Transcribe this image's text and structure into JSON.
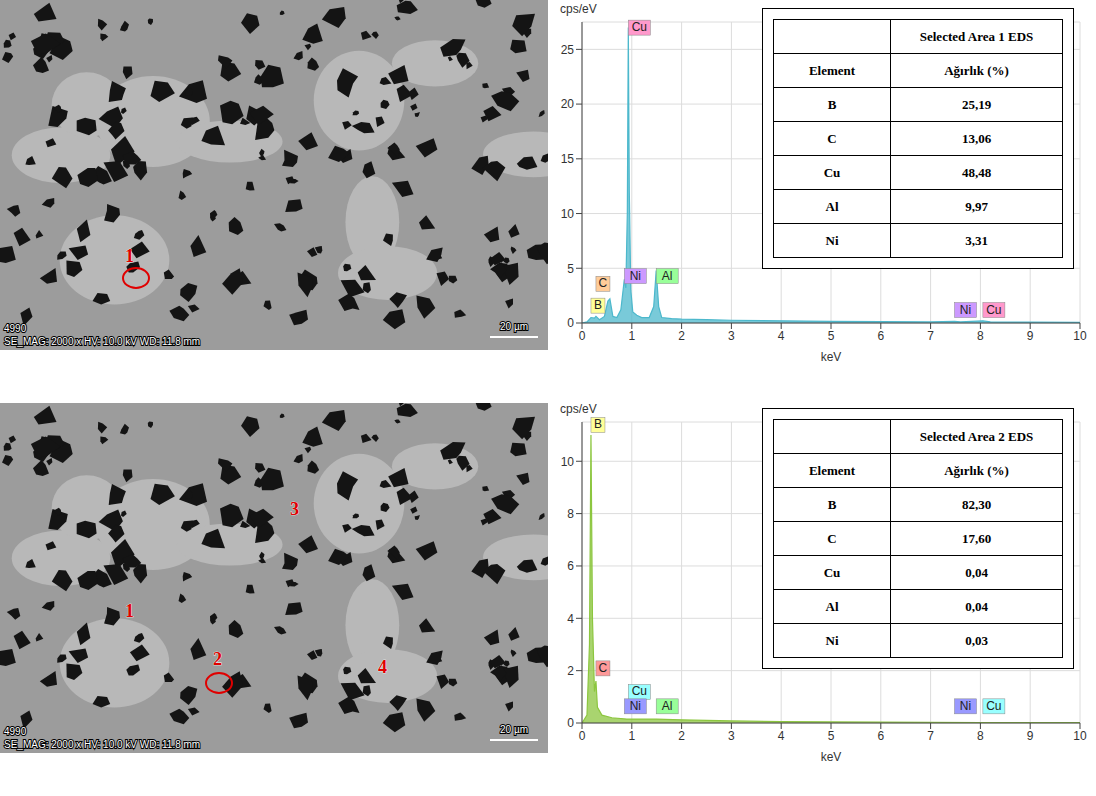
{
  "chart_data": [
    {
      "type": "area",
      "x_label": "keV",
      "y_label": "cps/eV",
      "color": "#4cb8cc",
      "grid": true,
      "xlim": [
        0,
        10
      ],
      "xticks": [
        0,
        1,
        2,
        3,
        4,
        5,
        6,
        7,
        8,
        9,
        10
      ],
      "ylim": [
        0,
        27.5
      ],
      "yticks": [
        0,
        5,
        10,
        15,
        20,
        25
      ],
      "x": [
        0,
        0.1,
        0.18,
        0.25,
        0.28,
        0.35,
        0.45,
        0.52,
        0.56,
        0.62,
        0.7,
        0.78,
        0.85,
        0.88,
        0.91,
        0.93,
        0.95,
        0.98,
        1.02,
        1.1,
        1.2,
        1.35,
        1.44,
        1.49,
        1.54,
        1.6,
        1.8,
        2,
        2.5,
        3,
        4,
        5,
        6,
        7,
        7.48,
        7.6,
        8.05,
        8.2,
        9,
        10
      ],
      "values": [
        0,
        0.1,
        0.5,
        0.45,
        0.6,
        0.3,
        0.6,
        2,
        2.2,
        0.6,
        0.5,
        1.2,
        4,
        3.2,
        10,
        27,
        12,
        3,
        1,
        0.7,
        0.5,
        0.5,
        1.5,
        4.8,
        1.5,
        0.5,
        0.4,
        0.35,
        0.3,
        0.25,
        0.2,
        0.15,
        0.12,
        0.1,
        0.15,
        0.1,
        0.2,
        0.1,
        0.08,
        0.05
      ],
      "annotations": [
        {
          "text": "B",
          "x": 0.18,
          "y": 0.9,
          "color": "#ffff99"
        },
        {
          "text": "C",
          "x": 0.28,
          "y": 2.9,
          "color": "#ffcc99"
        },
        {
          "text": "Ni",
          "x": 0.85,
          "y": 3.6,
          "color": "#cc99ff"
        },
        {
          "text": "Cu",
          "x": 0.93,
          "y": 26.3,
          "color": "#ff99cc"
        },
        {
          "text": "Al",
          "x": 1.49,
          "y": 3.6,
          "color": "#99ff99"
        },
        {
          "text": "Ni",
          "x": 7.48,
          "y": 0.5,
          "color": "#cc99ff"
        },
        {
          "text": "Cu",
          "x": 8.05,
          "y": 0.5,
          "color": "#ff99cc"
        }
      ]
    },
    {
      "type": "area",
      "x_label": "keV",
      "y_label": "cps/eV",
      "color": "#8cc63f",
      "grid": true,
      "xlim": [
        0,
        10
      ],
      "xticks": [
        0,
        1,
        2,
        3,
        4,
        5,
        6,
        7,
        8,
        9,
        10
      ],
      "ylim": [
        0,
        11.5
      ],
      "yticks": [
        0,
        2,
        4,
        6,
        8,
        10
      ],
      "x": [
        0,
        0.1,
        0.15,
        0.18,
        0.21,
        0.25,
        0.28,
        0.31,
        0.4,
        0.6,
        0.9,
        1.2,
        1.5,
        2,
        2.5,
        3,
        4,
        5,
        6,
        8,
        10
      ],
      "values": [
        0,
        0.3,
        3,
        11,
        4,
        1.2,
        1.6,
        0.6,
        0.3,
        0.2,
        0.15,
        0.15,
        0.15,
        0.12,
        0.1,
        0.08,
        0.05,
        0.04,
        0.03,
        0.02,
        0.02
      ],
      "annotations": [
        {
          "text": "B",
          "x": 0.18,
          "y": 11.1,
          "color": "#ffff99"
        },
        {
          "text": "C",
          "x": 0.28,
          "y": 1.8,
          "color": "#ff9999"
        },
        {
          "text": "Cu",
          "x": 0.93,
          "y": 0.9,
          "color": "#99ffff"
        },
        {
          "text": "Ni",
          "x": 0.85,
          "y": 0.35,
          "color": "#9999ff"
        },
        {
          "text": "Al",
          "x": 1.49,
          "y": 0.35,
          "color": "#99ff99"
        },
        {
          "text": "Ni",
          "x": 7.48,
          "y": 0.35,
          "color": "#9999ff"
        },
        {
          "text": "Cu",
          "x": 8.05,
          "y": 0.35,
          "color": "#99ffff"
        }
      ]
    }
  ],
  "tables": [
    {
      "title": "Selected Area 1 EDS",
      "header": [
        "Element",
        "Ağırlık (%)"
      ],
      "rows": [
        [
          "B",
          "25,19"
        ],
        [
          "C",
          "13,06"
        ],
        [
          "Cu",
          "48,48"
        ],
        [
          "Al",
          "9,97"
        ],
        [
          "Ni",
          "3,31"
        ]
      ]
    },
    {
      "title": "Selected Area 2 EDS",
      "header": [
        "Element",
        "Ağırlık (%)"
      ],
      "rows": [
        [
          "B",
          "82,30"
        ],
        [
          "C",
          "17,60"
        ],
        [
          "Cu",
          "0,04"
        ],
        [
          "Al",
          "0,04"
        ],
        [
          "Ni",
          "0,03"
        ]
      ]
    }
  ],
  "images": [
    {
      "info": "4990",
      "caption": "SE_MAG: 2000 x HV: 10.0 kV  WD: 11.8 mm",
      "scale_bar": "20 µm",
      "labels": [
        "1"
      ],
      "circled": "1"
    },
    {
      "info": "4990",
      "caption": "SE_MAG: 2000 x HV: 10.0 kV  WD: 11.8 mm",
      "scale_bar": "20 µm",
      "labels": [
        "1",
        "2",
        "3",
        "4"
      ],
      "circled": "2"
    }
  ]
}
